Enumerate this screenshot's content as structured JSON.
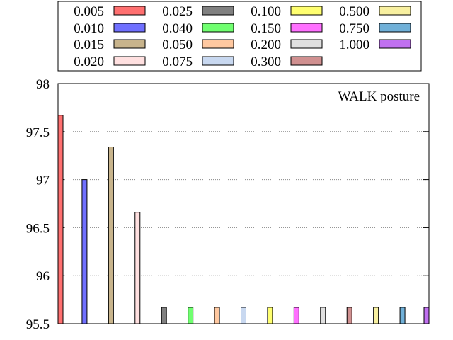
{
  "chart_data": {
    "type": "bar",
    "annotation": "WALK posture",
    "ylim": [
      95.5,
      98
    ],
    "yticks": [
      "95.5",
      "96",
      "96.5",
      "97",
      "97.5",
      "98"
    ],
    "grid": "horizontal dotted",
    "legend_placement": "top, above plot",
    "series": [
      {
        "name": "0.005",
        "value": 97.67,
        "color": "#ff7070"
      },
      {
        "name": "0.010",
        "value": 97.0,
        "color": "#7070ff"
      },
      {
        "name": "0.015",
        "value": 97.34,
        "color": "#c8b48c"
      },
      {
        "name": "0.020",
        "value": 96.66,
        "color": "#ffe0e0"
      },
      {
        "name": "0.025",
        "value": 95.67,
        "color": "#808080"
      },
      {
        "name": "0.040",
        "value": 95.67,
        "color": "#70ff70"
      },
      {
        "name": "0.050",
        "value": 95.67,
        "color": "#ffc8a0"
      },
      {
        "name": "0.075",
        "value": 95.67,
        "color": "#c8d8f0"
      },
      {
        "name": "0.100",
        "value": 95.67,
        "color": "#ffff70"
      },
      {
        "name": "0.150",
        "value": 95.67,
        "color": "#ff70ff"
      },
      {
        "name": "0.200",
        "value": 95.67,
        "color": "#e0e0e0"
      },
      {
        "name": "0.300",
        "value": 95.67,
        "color": "#d09090"
      },
      {
        "name": "0.500",
        "value": 95.67,
        "color": "#f8f0a0"
      },
      {
        "name": "0.750",
        "value": 95.67,
        "color": "#70b0d8"
      },
      {
        "name": "1.000",
        "value": 95.67,
        "color": "#c070f0"
      }
    ]
  }
}
